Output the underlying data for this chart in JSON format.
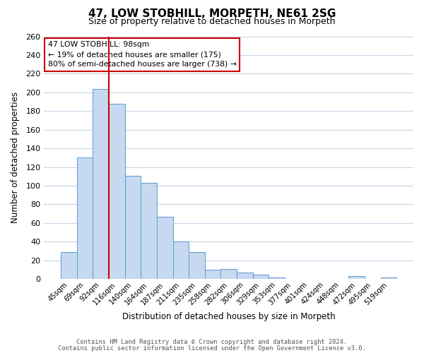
{
  "title": "47, LOW STOBHILL, MORPETH, NE61 2SG",
  "subtitle": "Size of property relative to detached houses in Morpeth",
  "xlabel": "Distribution of detached houses by size in Morpeth",
  "ylabel": "Number of detached properties",
  "bar_labels": [
    "45sqm",
    "69sqm",
    "92sqm",
    "116sqm",
    "140sqm",
    "164sqm",
    "187sqm",
    "211sqm",
    "235sqm",
    "258sqm",
    "282sqm",
    "306sqm",
    "329sqm",
    "353sqm",
    "377sqm",
    "401sqm",
    "424sqm",
    "448sqm",
    "472sqm",
    "495sqm",
    "519sqm"
  ],
  "bar_values": [
    29,
    130,
    204,
    188,
    111,
    103,
    67,
    40,
    29,
    10,
    11,
    7,
    5,
    2,
    0,
    0,
    0,
    0,
    3,
    0,
    2
  ],
  "bar_color": "#c6d9f0",
  "bar_edge_color": "#5b9bd5",
  "highlight_bar_index": 2,
  "highlight_color": "#cc0000",
  "annotation_title": "47 LOW STOBHILL: 98sqm",
  "annotation_line1": "← 19% of detached houses are smaller (175)",
  "annotation_line2": "80% of semi-detached houses are larger (738) →",
  "ylim": [
    0,
    260
  ],
  "yticks": [
    0,
    20,
    40,
    60,
    80,
    100,
    120,
    140,
    160,
    180,
    200,
    220,
    240,
    260
  ],
  "footer_line1": "Contains HM Land Registry data © Crown copyright and database right 2024.",
  "footer_line2": "Contains public sector information licensed under the Open Government Licence v3.0.",
  "background_color": "#ffffff",
  "grid_color": "#c8d4e8",
  "ann_box_edge_color": "#cc0000",
  "ann_box_face_color": "#ffffff"
}
